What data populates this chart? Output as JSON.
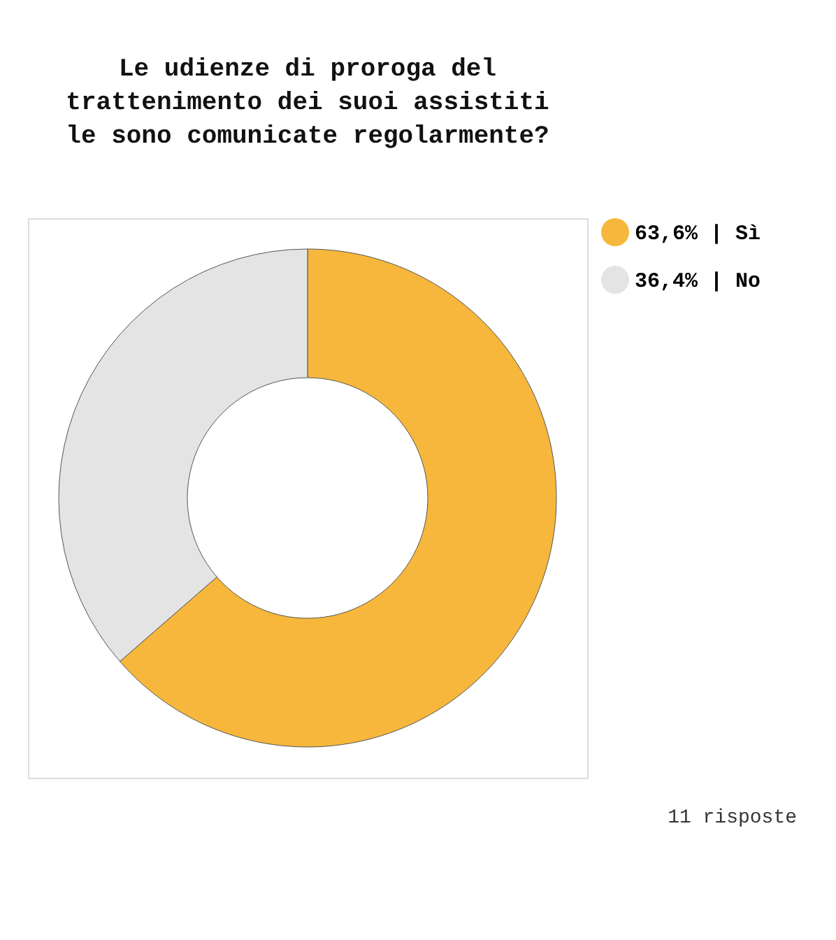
{
  "chart_data": {
    "type": "donut",
    "title": [
      "Le udienze di proroga del",
      "trattenimento dei suoi assistiti",
      "le sono comunicate regolarmente?"
    ],
    "categories": [
      "63,6% | Sì",
      "36,4% | No"
    ],
    "values": [
      63.6,
      36.4
    ],
    "colors": [
      "#f6b73c",
      "#e4e4e4"
    ],
    "legend": "right",
    "annotations": [
      "11 risposte"
    ]
  }
}
